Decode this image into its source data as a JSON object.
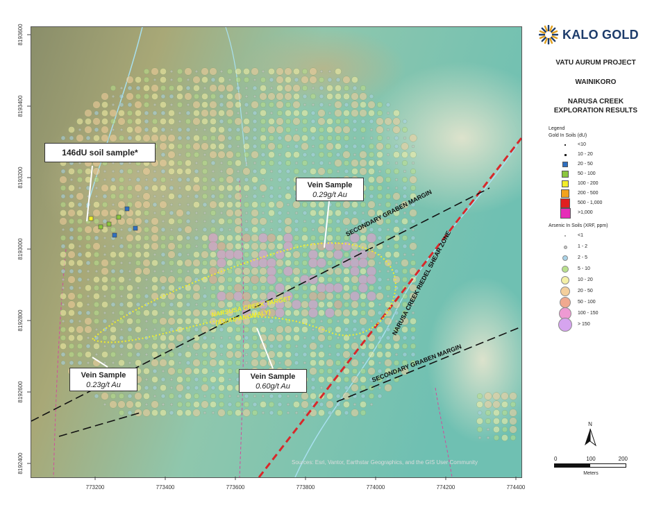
{
  "header": {
    "logo_text": "KALO GOLD",
    "logo_icon": "sunburst-icon",
    "project": "VATU AURUM PROJECT",
    "area": "WAINIKORO",
    "title_line1": "NARUSA CREEK",
    "title_line2": "EXPLORATION RESULTS"
  },
  "axes": {
    "x_ticks": [
      "773200",
      "773400",
      "773600",
      "773800",
      "774000",
      "774200",
      "774400"
    ],
    "y_ticks": [
      "8193600",
      "8193400",
      "8193200",
      "8193000",
      "8192800",
      "8192600",
      "8192400"
    ]
  },
  "callouts": {
    "soil": {
      "line1": "146dU soil sample*"
    },
    "vein_a": {
      "line1": "Vein Sample",
      "line2": "0.29g/t Au"
    },
    "vein_b": {
      "line1": "Vein Sample",
      "line2": "0.23g/t Au"
    },
    "vein_c": {
      "line1": "Vein Sample",
      "line2": "0.60g/t Au"
    }
  },
  "map_labels": {
    "graben_top": "SECONDARY GRABEN MARGIN",
    "graben_bottom": "SECONDARY GRABEN MARGIN",
    "shear": "NARUSA CREEK RIEDEL SHEAR ZONE",
    "target_line1": "NARSUSA CREEK TARGET",
    "target_line2": "(AS/AU ANOMALY)",
    "attribution": "Sources: Esri, Vantor, Earthstar Geographics, and the GIS User Community"
  },
  "legend": {
    "title": "Legend",
    "gold_title": "Gold In Soils (dU)",
    "gold": [
      {
        "label": "<10",
        "color": "#222222",
        "shape": "dot"
      },
      {
        "label": "10 - 20",
        "color": "#222222",
        "shape": "small-square"
      },
      {
        "label": "20 - 50",
        "color": "#2f6fc0",
        "shape": "square"
      },
      {
        "label": "50 - 100",
        "color": "#8cc63f",
        "shape": "square"
      },
      {
        "label": "100 - 200",
        "color": "#f2ee2a",
        "shape": "square"
      },
      {
        "label": "200 - 500",
        "color": "#f2a21d",
        "shape": "square"
      },
      {
        "label": "500 - 1,000",
        "color": "#e01f1f",
        "shape": "square"
      },
      {
        "label": ">1,000",
        "color": "#e62eb8",
        "shape": "square"
      }
    ],
    "arsenic_title": "Arsenic In Soils (XRF, ppm)",
    "arsenic": [
      {
        "label": "<1",
        "color": "#9aa0a6",
        "size": 2
      },
      {
        "label": "1 - 2",
        "color": "#c9c9c9",
        "size": 5
      },
      {
        "label": "2 - 5",
        "color": "#a9d3e8",
        "size": 8
      },
      {
        "label": "5 - 10",
        "color": "#b9e08d",
        "size": 10
      },
      {
        "label": "10 - 20",
        "color": "#f4f0a6",
        "size": 12
      },
      {
        "label": "20 - 50",
        "color": "#f4cf9c",
        "size": 14
      },
      {
        "label": "50 - 100",
        "color": "#f0a98f",
        "size": 16
      },
      {
        "label": "100 - 150",
        "color": "#ee9ad3",
        "size": 18
      },
      {
        "label": "> 150",
        "color": "#d6a4ef",
        "size": 20
      }
    ]
  },
  "scale_bar": {
    "ticks": [
      "0",
      "100",
      "200"
    ],
    "unit": "Meters"
  },
  "north_label": "N"
}
